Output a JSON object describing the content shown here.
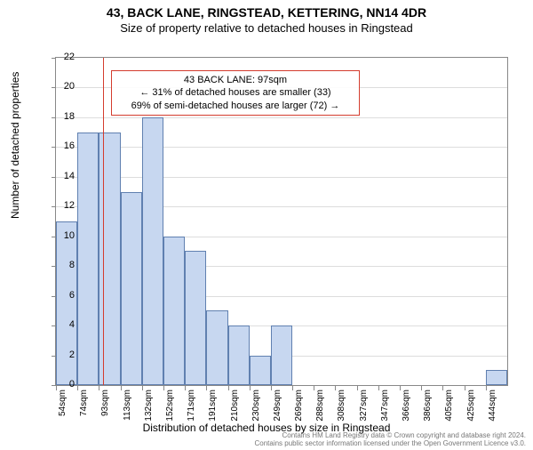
{
  "title_main": "43, BACK LANE, RINGSTEAD, KETTERING, NN14 4DR",
  "title_sub": "Size of property relative to detached houses in Ringstead",
  "ylabel": "Number of detached properties",
  "xlabel": "Distribution of detached houses by size in Ringstead",
  "chart": {
    "type": "histogram",
    "bar_fill": "#c7d7f0",
    "bar_stroke": "#6080b0",
    "background_color": "#ffffff",
    "grid_color": "#dddddd",
    "axis_color": "#888888",
    "ylim": [
      0,
      22
    ],
    "yticks": [
      0,
      2,
      4,
      6,
      8,
      10,
      12,
      14,
      16,
      18,
      20,
      22
    ],
    "x_start": 54,
    "x_step": 19.5,
    "x_count": 21,
    "x_unit": "sqm",
    "values": [
      11,
      17,
      17,
      13,
      18,
      10,
      9,
      5,
      4,
      2,
      4,
      0,
      0,
      0,
      0,
      0,
      0,
      0,
      0,
      0,
      1
    ],
    "marker": {
      "x_value": 97,
      "color": "#d43c2e"
    },
    "callout": {
      "line1": "43 BACK LANE: 97sqm",
      "line2": "← 31% of detached houses are smaller (33)",
      "line3": "69% of semi-detached houses are larger (72) →",
      "border_color": "#d43c2e"
    }
  },
  "footer_line1": "Contains HM Land Registry data © Crown copyright and database right 2024.",
  "footer_line2": "Contains public sector information licensed under the Open Government Licence v3.0."
}
